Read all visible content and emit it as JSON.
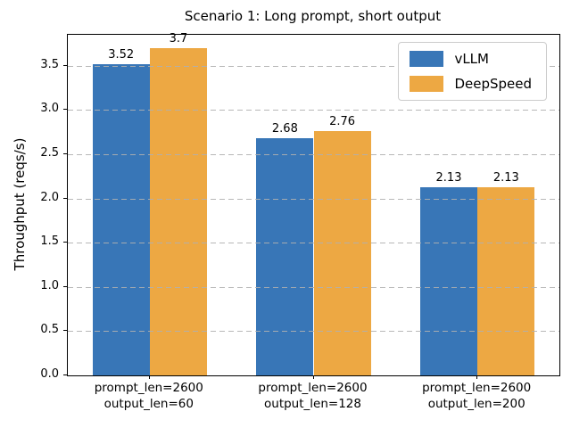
{
  "figure": {
    "title": "Scenario 1: Long prompt, short output",
    "ylabel": "Throughput (reqs/s)"
  },
  "chart_data": {
    "type": "bar",
    "title": "Scenario 1: Long prompt, short output",
    "xlabel": "",
    "ylabel": "Throughput (reqs/s)",
    "categories": [
      [
        "prompt_len=2600",
        "output_len=60"
      ],
      [
        "prompt_len=2600",
        "output_len=128"
      ],
      [
        "prompt_len=2600",
        "output_len=200"
      ]
    ],
    "series": [
      {
        "name": "vLLM",
        "color": "#3876b7",
        "values": [
          3.52,
          2.68,
          2.13
        ],
        "value_labels": [
          "3.52",
          "2.68",
          "2.13"
        ]
      },
      {
        "name": "DeepSpeed",
        "color": "#eda843",
        "values": [
          3.7,
          2.76,
          2.13
        ],
        "value_labels": [
          "3.7",
          "2.76",
          "2.13"
        ]
      }
    ],
    "yticks": [
      0.0,
      0.5,
      1.0,
      1.5,
      2.0,
      2.5,
      3.0,
      3.5
    ],
    "ytick_labels": [
      "0.0",
      "0.5",
      "1.0",
      "1.5",
      "2.0",
      "2.5",
      "3.0",
      "3.5"
    ],
    "ylim": [
      0,
      3.85
    ],
    "grid": "horizontal-dashed-over-bars",
    "legend_position": "upper right",
    "bar_width_fraction": 0.35
  },
  "colors": {
    "vllm_bar": "#3876b7",
    "deepspeed_bar": "#eda843",
    "grid_line": "#b0b0b0",
    "spine": "#000000",
    "text": "#000000",
    "legend_border": "#cccccc",
    "background": "#ffffff"
  }
}
